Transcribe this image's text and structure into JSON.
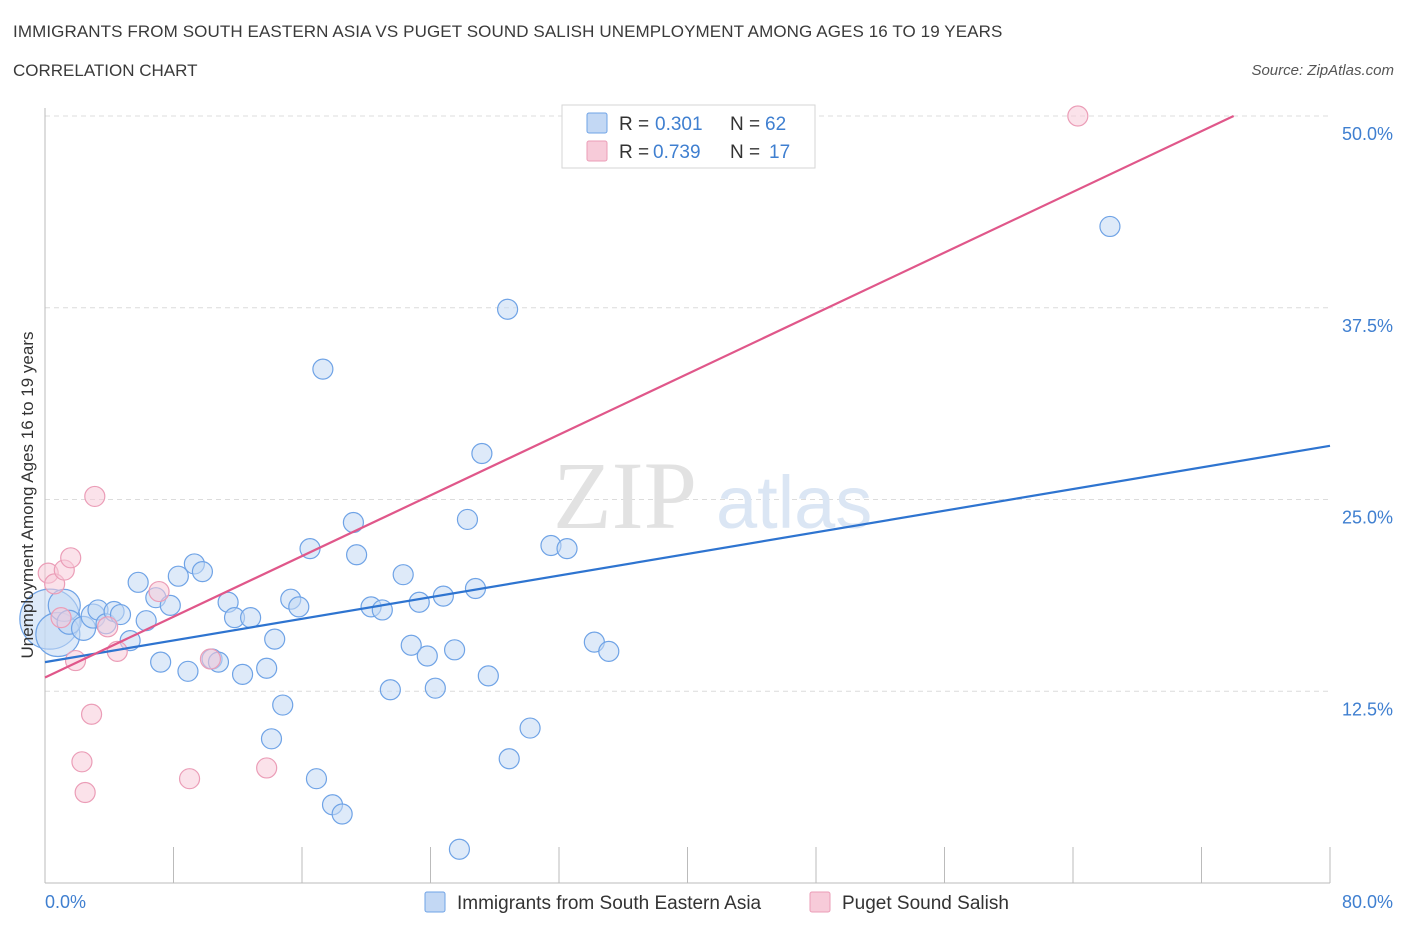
{
  "chart_data": {
    "type": "scatter",
    "title": "IMMIGRANTS FROM SOUTH EASTERN ASIA VS PUGET SOUND SALISH UNEMPLOYMENT AMONG AGES 16 TO 19 YEARS",
    "subtitle": "CORRELATION CHART",
    "source": "Source: ZipAtlas.com",
    "ylabel": "Unemployment Among Ages 16 to 19 years",
    "xlim": [
      0,
      80
    ],
    "ylim": [
      0,
      50
    ],
    "x_tick_labels": [
      {
        "value": 0,
        "label": "0.0%"
      },
      {
        "value": 80,
        "label": "80.0%"
      }
    ],
    "y_tick_labels": [
      {
        "value": 12.5,
        "label": "12.5%"
      },
      {
        "value": 25,
        "label": "25.0%"
      },
      {
        "value": 37.5,
        "label": "37.5%"
      },
      {
        "value": 50,
        "label": "50.0%"
      }
    ],
    "watermark": {
      "zip": "ZIP",
      "atlas": "atlas"
    },
    "legend_top": [
      {
        "r_label": "R =",
        "r_value": "0.301",
        "n_label": "N =",
        "n_value": "62"
      },
      {
        "r_label": "R =",
        "r_value": "0.739",
        "n_label": "N =",
        "n_value": "17"
      }
    ],
    "series": [
      {
        "name": "Immigrants from South Eastern Asia",
        "color": "#6fa3e6",
        "fill": "#c3d8f4",
        "trend_color": "#2e74d0",
        "trend": [
          [
            0,
            14.4
          ],
          [
            80,
            28.5
          ]
        ],
        "points": [
          [
            0.3,
            17.2,
            30
          ],
          [
            0.8,
            16.2,
            22
          ],
          [
            1.2,
            18.1,
            16
          ],
          [
            1.5,
            17.0,
            12
          ],
          [
            2.4,
            16.6,
            12
          ],
          [
            3.0,
            17.4,
            12
          ],
          [
            3.3,
            17.8,
            10
          ],
          [
            3.8,
            16.9,
            10
          ],
          [
            4.3,
            17.7,
            10
          ],
          [
            4.7,
            17.5,
            10
          ],
          [
            5.3,
            15.8,
            10
          ],
          [
            5.8,
            19.6,
            10
          ],
          [
            6.3,
            17.1,
            10
          ],
          [
            6.9,
            18.6,
            10
          ],
          [
            7.2,
            14.4,
            10
          ],
          [
            7.8,
            18.1,
            10
          ],
          [
            8.3,
            20.0,
            10
          ],
          [
            8.9,
            13.8,
            10
          ],
          [
            9.3,
            20.8,
            10
          ],
          [
            9.8,
            20.3,
            10
          ],
          [
            10.4,
            14.6,
            10
          ],
          [
            10.8,
            14.4,
            10
          ],
          [
            11.4,
            18.3,
            10
          ],
          [
            11.8,
            17.3,
            10
          ],
          [
            12.3,
            13.6,
            10
          ],
          [
            12.8,
            17.3,
            10
          ],
          [
            13.8,
            14.0,
            10
          ],
          [
            14.3,
            15.9,
            10
          ],
          [
            14.8,
            11.6,
            10
          ],
          [
            14.1,
            9.4,
            10
          ],
          [
            15.3,
            18.5,
            10
          ],
          [
            15.8,
            18.0,
            10
          ],
          [
            16.5,
            21.8,
            10
          ],
          [
            16.9,
            6.8,
            10
          ],
          [
            17.3,
            33.5,
            10
          ],
          [
            17.9,
            5.1,
            10
          ],
          [
            18.5,
            4.5,
            10
          ],
          [
            19.2,
            23.5,
            10
          ],
          [
            19.4,
            21.4,
            10
          ],
          [
            20.3,
            18.0,
            10
          ],
          [
            21.0,
            17.8,
            10
          ],
          [
            21.5,
            12.6,
            10
          ],
          [
            22.3,
            20.1,
            10
          ],
          [
            22.8,
            15.5,
            10
          ],
          [
            23.3,
            18.3,
            10
          ],
          [
            23.8,
            14.8,
            10
          ],
          [
            24.3,
            12.7,
            10
          ],
          [
            24.8,
            18.7,
            10
          ],
          [
            25.5,
            15.2,
            10
          ],
          [
            25.8,
            2.2,
            10
          ],
          [
            26.3,
            23.7,
            10
          ],
          [
            26.8,
            19.2,
            10
          ],
          [
            27.2,
            28.0,
            10
          ],
          [
            27.6,
            13.5,
            10
          ],
          [
            28.9,
            8.1,
            10
          ],
          [
            28.8,
            37.4,
            10
          ],
          [
            30.2,
            10.1,
            10
          ],
          [
            31.5,
            22.0,
            10
          ],
          [
            32.5,
            21.8,
            10
          ],
          [
            34.2,
            15.7,
            10
          ],
          [
            35.1,
            15.1,
            10
          ],
          [
            66.3,
            42.8,
            10
          ]
        ]
      },
      {
        "name": "Puget Sound Salish",
        "color": "#eb9db7",
        "fill": "#f7cbd9",
        "trend_color": "#e0578a",
        "trend": [
          [
            0,
            13.4
          ],
          [
            74,
            50.0
          ]
        ],
        "points": [
          [
            0.2,
            20.2,
            10
          ],
          [
            0.6,
            19.5,
            10
          ],
          [
            1.0,
            17.3,
            10
          ],
          [
            1.2,
            20.4,
            10
          ],
          [
            1.6,
            21.2,
            10
          ],
          [
            1.9,
            14.5,
            10
          ],
          [
            2.3,
            7.9,
            10
          ],
          [
            2.5,
            5.9,
            10
          ],
          [
            2.9,
            11.0,
            10
          ],
          [
            3.1,
            25.2,
            10
          ],
          [
            3.9,
            16.7,
            10
          ],
          [
            4.5,
            15.1,
            10
          ],
          [
            7.1,
            19.0,
            10
          ],
          [
            9.0,
            6.8,
            10
          ],
          [
            10.3,
            14.6,
            10
          ],
          [
            13.8,
            7.5,
            10
          ],
          [
            64.3,
            50.0,
            10
          ]
        ]
      }
    ]
  }
}
